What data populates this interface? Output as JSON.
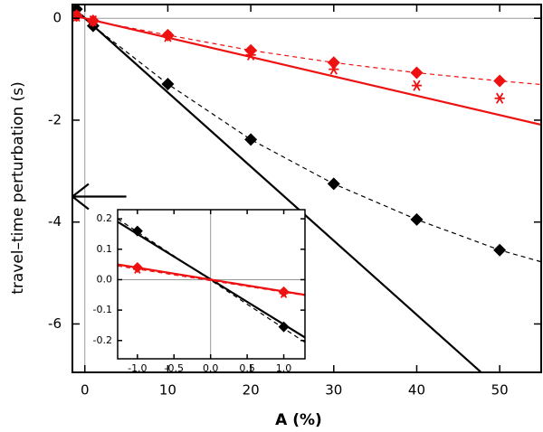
{
  "chart_data": [
    {
      "type": "line",
      "xlabel": "A (%)",
      "ylabel": "travel–time perturbation (s)",
      "xlim": [
        -1.5,
        55
      ],
      "ylim": [
        -6.95,
        0.27
      ],
      "xticks": [
        0,
        10,
        20,
        30,
        40,
        50
      ],
      "yticks": [
        0,
        -2,
        -4,
        -6
      ],
      "hline": 0,
      "vline": 0,
      "arrow": {
        "y": -3.5,
        "x": [
          5,
          -1.5
        ]
      },
      "series": [
        {
          "color": "#000000",
          "line": "solid",
          "x": [
            -1,
            47.7
          ],
          "values": [
            0.145,
            -6.94
          ]
        },
        {
          "color": "#000000",
          "line": "dashed",
          "x": [
            -1,
            1,
            10,
            20,
            30,
            40,
            50,
            55
          ],
          "values": [
            0.18,
            -0.15,
            -1.29,
            -2.38,
            -3.25,
            -3.95,
            -4.55,
            -4.78
          ]
        },
        {
          "color": "#000000",
          "marker": "diamond",
          "x": [
            -1,
            1,
            10,
            20,
            30,
            40,
            50
          ],
          "values": [
            0.18,
            -0.15,
            -1.29,
            -2.38,
            -3.25,
            -3.95,
            -4.55
          ]
        },
        {
          "color": "#ee1111",
          "line": "solid",
          "x": [
            -1,
            55
          ],
          "values": [
            0.038,
            -2.09
          ]
        },
        {
          "color": "#ee1111",
          "line": "dashed",
          "x": [
            -1,
            1,
            10,
            20,
            30,
            40,
            50,
            55
          ],
          "values": [
            0.05,
            -0.05,
            -0.33,
            -0.63,
            -0.87,
            -1.07,
            -1.23,
            -1.3
          ]
        },
        {
          "color": "#ee1111",
          "marker": "asterisk",
          "x": [
            -1,
            1,
            10,
            20,
            30,
            40,
            50
          ],
          "values": [
            0.04,
            -0.05,
            -0.36,
            -0.72,
            -1.0,
            -1.32,
            -1.57
          ]
        },
        {
          "color": "#ee1111",
          "marker": "diamond",
          "x": [
            -1,
            1,
            10,
            20,
            30,
            40,
            50
          ],
          "values": [
            0.05,
            -0.05,
            -0.33,
            -0.63,
            -0.87,
            -1.07,
            -1.23
          ]
        }
      ]
    },
    {
      "type": "line",
      "xlim": [
        -1.27,
        1.29
      ],
      "ylim": [
        -0.26,
        0.23
      ],
      "xticks": [
        {
          "value": -1,
          "label": "-1.0"
        },
        {
          "value": -0.5,
          "label": "-0.5"
        },
        {
          "value": 0,
          "label": "0.0"
        },
        {
          "value": 0.5,
          "label": "0.5"
        },
        {
          "value": 1,
          "label": "1.0"
        }
      ],
      "yticks": [
        0.2,
        0.1,
        {
          "value": 0,
          "label": "0.0"
        },
        -0.1,
        -0.2
      ],
      "hline": 0,
      "vline": 0,
      "series": [
        {
          "color": "#000000",
          "line": "solid",
          "x": [
            -1.27,
            1.29
          ],
          "values": [
            0.19,
            -0.19
          ]
        },
        {
          "color": "#000000",
          "line": "dashed",
          "x": [
            -1.27,
            1.29
          ],
          "values": [
            0.2,
            -0.206
          ]
        },
        {
          "color": "#000000",
          "marker": "diamond",
          "x": [
            -1,
            1
          ],
          "values": [
            0.16,
            -0.155
          ]
        },
        {
          "color": "#ee1111",
          "line": "solid",
          "x": [
            -1.27,
            1.29
          ],
          "values": [
            0.05,
            -0.05
          ]
        },
        {
          "color": "#ee1111",
          "line": "dashed",
          "x": [
            -1.27,
            1.29
          ],
          "values": [
            0.045,
            -0.052
          ]
        },
        {
          "color": "#ee1111",
          "marker": "asterisk",
          "x": [
            -1,
            1
          ],
          "values": [
            0.035,
            -0.045
          ]
        },
        {
          "color": "#ee1111",
          "marker": "diamond",
          "x": [
            -1,
            1
          ],
          "values": [
            0.04,
            -0.04
          ]
        }
      ]
    }
  ]
}
